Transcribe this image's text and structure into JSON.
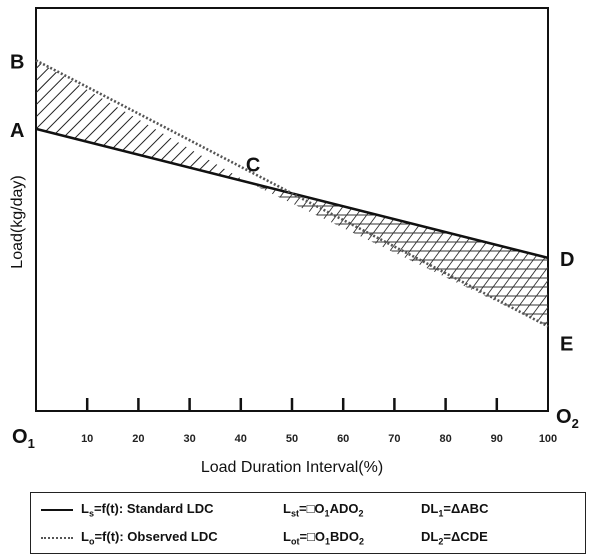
{
  "chart_data": {
    "type": "line",
    "xlabel": "Load Duration Interval(%)",
    "ylabel": "Load(kg/day)",
    "xlim": [
      0,
      100
    ],
    "x_ticks": [
      10,
      20,
      30,
      40,
      50,
      60,
      70,
      80,
      90,
      100
    ],
    "series": [
      {
        "style": "solid",
        "x": [
          0,
          100
        ],
        "y": [
          0.7,
          0.38
        ]
      },
      {
        "style": "dotted",
        "x": [
          0,
          100
        ],
        "y": [
          0.87,
          0.21
        ]
      }
    ],
    "points": [
      {
        "label": "B",
        "x": 0,
        "y": 0.87
      },
      {
        "label": "A",
        "x": 0,
        "y": 0.7
      },
      {
        "label": "C",
        "x": 41,
        "y": 0.57
      },
      {
        "label": "D",
        "x": 100,
        "y": 0.38
      },
      {
        "label": "E",
        "x": 100,
        "y": 0.21
      }
    ],
    "corners": {
      "left": "O",
      "left_sub": "1",
      "right": "O",
      "right_sub": "2"
    },
    "hatch": [
      {
        "region": "ABC",
        "pattern": "diagonal"
      },
      {
        "region": "CDE",
        "pattern": "crosshatch"
      }
    ]
  },
  "legend": {
    "row1": {
      "text": "L",
      "text_sub": "s",
      "text_rest": "=f(t): Standard LDC",
      "formula_lhs": "L",
      "formula_lhs_sub": "st",
      "formula_eq": "=",
      "formula_box": "□",
      "formula_rhs": "O",
      "formula_rhs_sub1": "1",
      "formula_rhs_mid": "ADO",
      "formula_rhs_sub2": "2",
      "dl": "DL",
      "dl_sub": "1",
      "dl_rest": "=ΔABC"
    },
    "row2": {
      "text": "L",
      "text_sub": "o",
      "text_rest": "=f(t): Observed LDC",
      "formula_lhs": "L",
      "formula_lhs_sub": "ot",
      "formula_eq": "=",
      "formula_box": "□",
      "formula_rhs": "O",
      "formula_rhs_sub1": "1",
      "formula_rhs_mid": "BDO",
      "formula_rhs_sub2": "2",
      "dl": "DL",
      "dl_sub": "2",
      "dl_rest": "=ΔCDE"
    }
  }
}
